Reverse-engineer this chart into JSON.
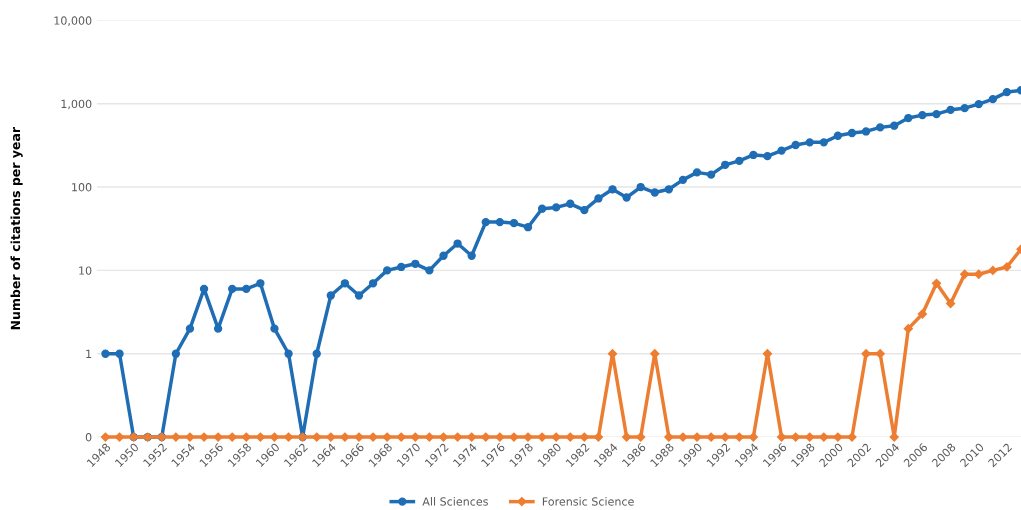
{
  "chart_data": {
    "type": "line",
    "ylabel": "Number of citations per year",
    "x": [
      1948,
      1949,
      1950,
      1951,
      1952,
      1953,
      1954,
      1955,
      1956,
      1957,
      1958,
      1959,
      1960,
      1961,
      1962,
      1963,
      1964,
      1965,
      1966,
      1967,
      1968,
      1969,
      1970,
      1971,
      1972,
      1973,
      1974,
      1975,
      1976,
      1977,
      1978,
      1979,
      1980,
      1981,
      1982,
      1983,
      1984,
      1985,
      1986,
      1987,
      1988,
      1989,
      1990,
      1991,
      1992,
      1993,
      1994,
      1995,
      1996,
      1997,
      1998,
      1999,
      2000,
      2001,
      2002,
      2003,
      2004,
      2005,
      2006,
      2007,
      2008,
      2009,
      2010,
      2011,
      2012,
      2013
    ],
    "series": [
      {
        "name": "All Sciences",
        "color": "#1f6db5",
        "marker": "circle",
        "values": [
          1,
          1,
          0.1,
          0.1,
          0.1,
          1,
          2,
          6,
          2,
          6,
          6,
          7,
          2,
          1,
          0.1,
          1,
          5,
          7,
          5,
          7,
          10,
          11,
          12,
          10,
          15,
          21,
          15,
          38,
          38,
          37,
          33,
          55,
          57,
          63,
          53,
          73,
          94,
          75,
          100,
          86,
          94,
          122,
          150,
          141,
          185,
          206,
          243,
          235,
          274,
          320,
          344,
          344,
          413,
          445,
          465,
          520,
          545,
          673,
          731,
          751,
          845,
          885,
          990,
          1135,
          1380,
          1450
        ]
      },
      {
        "name": "Forensic Science",
        "color": "#ed7d31",
        "marker": "diamond",
        "values": [
          0.1,
          0.1,
          0.1,
          0.1,
          0.1,
          0.1,
          0.1,
          0.1,
          0.1,
          0.1,
          0.1,
          0.1,
          0.1,
          0.1,
          0.1,
          0.1,
          0.1,
          0.1,
          0.1,
          0.1,
          0.1,
          0.1,
          0.1,
          0.1,
          0.1,
          0.1,
          0.1,
          0.1,
          0.1,
          0.1,
          0.1,
          0.1,
          0.1,
          0.1,
          0.1,
          0.1,
          1,
          0.1,
          0.1,
          1,
          0.1,
          0.1,
          0.1,
          0.1,
          0.1,
          0.1,
          0.1,
          1,
          0.1,
          0.1,
          0.1,
          0.1,
          0.1,
          0.1,
          1,
          1,
          0.1,
          2,
          3,
          7,
          4,
          9,
          9,
          10,
          11,
          18
        ]
      }
    ],
    "xlim": [
      1947.4,
      2013
    ],
    "xticks": [
      1948,
      1950,
      1952,
      1954,
      1956,
      1958,
      1960,
      1962,
      1964,
      1966,
      1968,
      1970,
      1972,
      1974,
      1976,
      1978,
      1980,
      1982,
      1984,
      1986,
      1988,
      1990,
      1992,
      1994,
      1996,
      1998,
      2000,
      2002,
      2004,
      2006,
      2008,
      2010,
      2012
    ],
    "ylim": [
      0.1,
      10000
    ],
    "yticks": [
      {
        "value": 0.1,
        "label": "0"
      },
      1,
      10,
      100,
      {
        "value": 1000,
        "label": "1,000"
      },
      {
        "value": 10000,
        "label": "10,000"
      }
    ],
    "log": true,
    "grid": "y",
    "legend": "bottom"
  }
}
